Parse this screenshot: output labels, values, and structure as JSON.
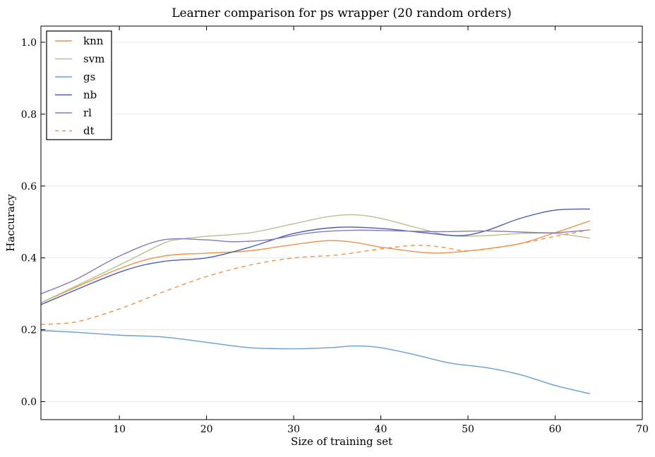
{
  "chart_data": {
    "type": "line",
    "title": "Learner comparison for ps wrapper (20 random orders)",
    "xlabel": "Size of training set",
    "ylabel": "Haccuracy",
    "xlim": [
      1,
      70
    ],
    "ylim": [
      -0.05,
      1.045
    ],
    "xticks": [
      10,
      20,
      30,
      40,
      50,
      60,
      70
    ],
    "yticks": [
      0.0,
      0.2,
      0.4,
      0.6,
      0.8,
      1.0
    ],
    "xtick_labels": [
      "10",
      "20",
      "30",
      "40",
      "50",
      "60",
      "70"
    ],
    "ytick_labels": [
      "0.0",
      "0.2",
      "0.4",
      "0.6",
      "0.8",
      "1.0"
    ],
    "grid": "horizontal",
    "legend_position": "top-left",
    "series": [
      {
        "name": "knn",
        "color": "#f0914a",
        "dashed": false,
        "x": [
          1,
          10,
          15,
          20,
          25,
          30,
          34,
          37,
          40,
          45,
          48,
          52,
          56,
          60,
          64
        ],
        "y": [
          0.275,
          0.37,
          0.405,
          0.413,
          0.42,
          0.437,
          0.448,
          0.443,
          0.43,
          0.415,
          0.415,
          0.425,
          0.44,
          0.47,
          0.503
        ]
      },
      {
        "name": "svm",
        "color": "#b3c38c",
        "dashed": false,
        "x": [
          1,
          10,
          15,
          17,
          20,
          25,
          30,
          34,
          37,
          40,
          44,
          48,
          52,
          56,
          60,
          64
        ],
        "y": [
          0.275,
          0.38,
          0.44,
          0.452,
          0.46,
          0.47,
          0.495,
          0.515,
          0.52,
          0.51,
          0.485,
          0.462,
          0.462,
          0.468,
          0.468,
          0.455
        ]
      },
      {
        "name": "gs",
        "color": "#6a9ed3",
        "dashed": false,
        "x": [
          1,
          5,
          10,
          15,
          20,
          25,
          30,
          34,
          37,
          40,
          44,
          48,
          52,
          56,
          60,
          64
        ],
        "y": [
          0.198,
          0.193,
          0.185,
          0.18,
          0.165,
          0.15,
          0.147,
          0.15,
          0.155,
          0.15,
          0.13,
          0.107,
          0.095,
          0.075,
          0.045,
          0.022
        ]
      },
      {
        "name": "nb",
        "color": "#4a5eb0",
        "dashed": false,
        "x": [
          1,
          10,
          15,
          20,
          25,
          30,
          35,
          40,
          45,
          49,
          52,
          56,
          60,
          64
        ],
        "y": [
          0.27,
          0.36,
          0.39,
          0.4,
          0.43,
          0.468,
          0.485,
          0.482,
          0.47,
          0.462,
          0.475,
          0.51,
          0.533,
          0.536
        ]
      },
      {
        "name": "rl",
        "color": "#8a78bb",
        "dashed": false,
        "x": [
          1,
          5,
          10,
          15,
          20,
          23,
          27,
          32,
          37,
          42,
          47,
          52,
          56,
          60,
          64
        ],
        "y": [
          0.3,
          0.34,
          0.405,
          0.45,
          0.45,
          0.445,
          0.45,
          0.47,
          0.477,
          0.475,
          0.473,
          0.475,
          0.472,
          0.47,
          0.478
        ]
      },
      {
        "name": "dt",
        "color": "#f0914a",
        "dashed": true,
        "x": [
          1,
          5,
          10,
          15,
          20,
          25,
          30,
          35,
          40,
          44,
          47,
          50,
          55,
          60,
          64
        ],
        "y": [
          0.215,
          0.222,
          0.258,
          0.305,
          0.348,
          0.38,
          0.4,
          0.408,
          0.425,
          0.435,
          0.43,
          0.42,
          0.435,
          0.46,
          0.478
        ]
      }
    ]
  }
}
